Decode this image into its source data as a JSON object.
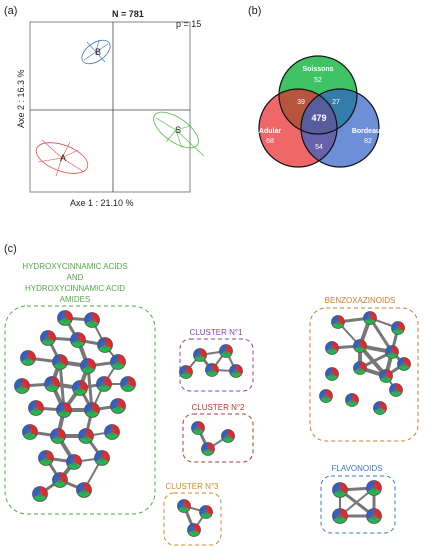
{
  "panel_a": {
    "label": "(a)",
    "title": "N = 781",
    "corner_note": "p = 15",
    "x_axis_label": "Axe 1 : 21.10 %",
    "y_axis_label": "Axe 2 : 16.3 %",
    "group_labels": [
      "A",
      "B",
      "S"
    ],
    "colors": {
      "A": "#e0504a",
      "B": "#3a7bc8",
      "S": "#48b848"
    }
  },
  "panel_b": {
    "label": "(b)",
    "sets": [
      {
        "name": "Soissons",
        "value": "52",
        "color": "#1fb84a"
      },
      {
        "name": "Adular",
        "value": "68",
        "color": "#e8262a"
      },
      {
        "name": "Bordeaux",
        "value": "82",
        "color": "#2f5fc8"
      }
    ],
    "intersections": {
      "soissons_adular": "39",
      "soissons_bordeaux": "27",
      "adular_bordeaux": "54",
      "all": "479"
    }
  },
  "panel_c": {
    "label": "(c)",
    "clusters": {
      "hca": {
        "title_lines": [
          "HYDROXYCINNAMIC ACIDS",
          "AND",
          "HYDROXYCINNAMIC ACID",
          "AMIDES"
        ],
        "color": "#52a84a"
      },
      "c1": {
        "title": "CLUSTER N°1",
        "color": "#8a3fb0"
      },
      "c2": {
        "title": "CLUSTER N°2",
        "color": "#b03a2e"
      },
      "c3": {
        "title": "CLUSTER N°3",
        "color": "#d08a2a"
      },
      "benz": {
        "title": "BENZOXAZINOIDS",
        "color": "#d07a2a"
      },
      "flav": {
        "title": "FLAVONOIDS",
        "color": "#3a78c8"
      }
    }
  }
}
